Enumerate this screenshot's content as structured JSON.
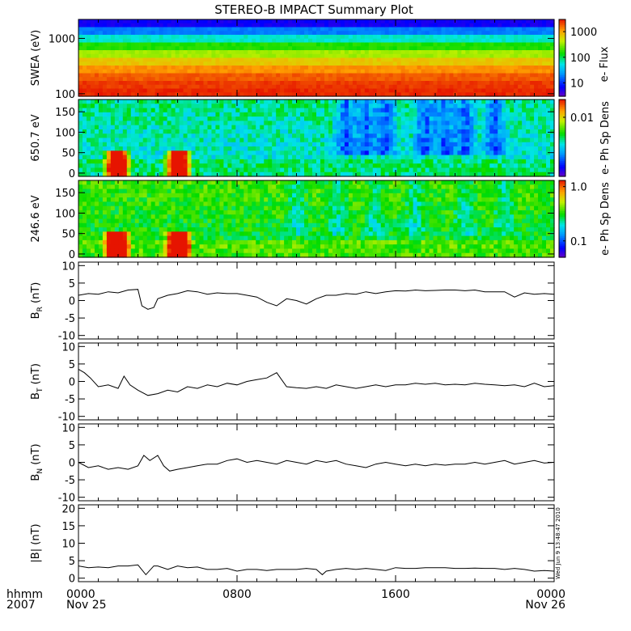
{
  "title": "STEREO-B IMPACT Summary Plot",
  "corner": {
    "row1": "hhmm",
    "row2": "2007"
  },
  "side_stamp": "Wed Jun  9 13:48:47 2010",
  "colors": {
    "line": "#000000",
    "axis": "#000000"
  },
  "chart_data": [
    {
      "id": "swea",
      "type": "heatmap",
      "ylabel": "SWEA (eV)",
      "colorbar_label": "e- Flux",
      "y_scale": "log",
      "ylim": [
        90,
        2200
      ],
      "yticks": [
        100,
        1000
      ],
      "ytick_labels": [
        "100",
        "1000"
      ],
      "colorbar_scale": "log",
      "colorbar_range": [
        3,
        3000
      ],
      "colorbar_ticks": [
        10,
        100,
        1000
      ],
      "colorbar_tick_labels": [
        "10",
        "100",
        "1000"
      ],
      "x_hours": [
        0,
        2,
        4,
        6,
        8,
        10,
        12,
        14,
        16,
        18,
        20,
        22,
        24
      ],
      "energy_levels_eV": [
        2000,
        1400,
        1000,
        700,
        500,
        350,
        250,
        180,
        130,
        100
      ],
      "flux_profile": [
        6,
        18,
        60,
        160,
        350,
        700,
        1200,
        1800,
        2300,
        2600
      ]
    },
    {
      "id": "pad650",
      "type": "heatmap",
      "ylabel": "650.7 eV",
      "colorbar_label": "e- Ph Sp Dens",
      "ylim": [
        -8,
        180
      ],
      "yticks": [
        0,
        50,
        100,
        150
      ],
      "ytick_labels": [
        "0",
        "50",
        "100",
        "150"
      ],
      "colorbar_scale": "log",
      "colorbar_range": [
        0.001,
        0.02
      ],
      "colorbar_ticks": [
        0.01
      ],
      "colorbar_tick_labels": [
        "0.01"
      ],
      "low_hours": [
        13.5,
        14.5,
        15.5,
        17.5,
        18.5,
        19.5,
        21.0
      ],
      "burst_hours": [
        1.7,
        2.2,
        4.8,
        5.3
      ]
    },
    {
      "id": "pad246",
      "type": "heatmap",
      "ylabel": "246.6 eV",
      "colorbar_label": "e- Ph Sp Dens",
      "ylim": [
        -8,
        180
      ],
      "yticks": [
        0,
        50,
        100,
        150
      ],
      "ytick_labels": [
        "0",
        "50",
        "100",
        "150"
      ],
      "colorbar_scale": "log",
      "colorbar_range": [
        0.05,
        1.3
      ],
      "colorbar_ticks": [
        0.1,
        1.0
      ],
      "colorbar_tick_labels": [
        "0.1",
        "1.0"
      ],
      "low_hours": [
        11.0,
        13.0,
        15.0,
        17.0,
        19.5,
        21.5
      ],
      "burst_hours": [
        1.7,
        2.2,
        4.8,
        5.3
      ]
    },
    {
      "id": "br",
      "type": "line",
      "ylabel": "BR (nT)",
      "ylabel_main": "B",
      "ylabel_sub": "R",
      "ylabel_unit": "(nT)",
      "ylim": [
        -11,
        11
      ],
      "yticks": [
        -10,
        -5,
        0,
        5,
        10
      ],
      "ytick_labels": [
        "-10",
        "-5",
        "0",
        "5",
        "10"
      ],
      "x_hours": [
        0,
        0.5,
        1,
        1.5,
        2,
        2.5,
        3,
        3.2,
        3.5,
        3.8,
        4,
        4.5,
        5,
        5.5,
        6,
        6.5,
        7,
        7.5,
        8,
        8.5,
        9,
        9.5,
        10,
        10.5,
        11,
        11.5,
        12,
        12.5,
        13,
        13.5,
        14,
        14.5,
        15,
        15.5,
        16,
        16.5,
        17,
        17.5,
        18,
        18.5,
        19,
        19.5,
        20,
        20.5,
        21,
        21.5,
        22,
        22.5,
        23,
        23.5,
        24
      ],
      "y_nT": [
        1.5,
        2.0,
        1.8,
        2.5,
        2.2,
        3.0,
        3.2,
        -1.5,
        -2.5,
        -2.0,
        0.5,
        1.5,
        2.0,
        2.8,
        2.5,
        1.8,
        2.2,
        2.0,
        2.0,
        1.5,
        1.0,
        -0.5,
        -1.5,
        0.5,
        0.0,
        -1.0,
        0.5,
        1.5,
        1.5,
        2.0,
        1.8,
        2.5,
        2.0,
        2.5,
        2.8,
        2.7,
        3.0,
        2.8,
        2.9,
        3.0,
        3.0,
        2.8,
        3.0,
        2.5,
        2.5,
        2.5,
        1.0,
        2.2,
        1.8,
        2.0,
        1.8
      ]
    },
    {
      "id": "bt",
      "type": "line",
      "ylabel": "BT (nT)",
      "ylabel_main": "B",
      "ylabel_sub": "T",
      "ylabel_unit": "(nT)",
      "ylim": [
        -11,
        11
      ],
      "yticks": [
        -10,
        -5,
        0,
        5,
        10
      ],
      "ytick_labels": [
        "-10",
        "-5",
        "0",
        "5",
        "10"
      ],
      "x_hours": [
        0,
        0.3,
        0.6,
        1,
        1.5,
        2,
        2.3,
        2.6,
        3,
        3.5,
        4,
        4.5,
        5,
        5.5,
        6,
        6.5,
        7,
        7.5,
        8,
        8.5,
        9,
        9.5,
        10,
        10.5,
        11,
        11.5,
        12,
        12.5,
        13,
        13.5,
        14,
        14.5,
        15,
        15.5,
        16,
        16.5,
        17,
        17.5,
        18,
        18.5,
        19,
        19.5,
        20,
        20.5,
        21,
        21.5,
        22,
        22.5,
        23,
        23.5,
        24
      ],
      "y_nT": [
        3.5,
        2.5,
        1.0,
        -1.5,
        -1.0,
        -2.0,
        1.5,
        -1.0,
        -2.5,
        -4.0,
        -3.5,
        -2.5,
        -3.0,
        -1.5,
        -2.0,
        -1.0,
        -1.5,
        -0.5,
        -1.0,
        0.0,
        0.5,
        1.0,
        2.5,
        -1.5,
        -1.8,
        -2.0,
        -1.5,
        -2.0,
        -1.0,
        -1.5,
        -2.0,
        -1.5,
        -1.0,
        -1.5,
        -1.0,
        -1.0,
        -0.5,
        -0.8,
        -0.5,
        -1.0,
        -0.8,
        -1.0,
        -0.5,
        -0.8,
        -1.0,
        -1.2,
        -1.0,
        -1.5,
        -0.5,
        -1.5,
        -1.2
      ]
    },
    {
      "id": "bn",
      "type": "line",
      "ylabel": "BN (nT)",
      "ylabel_main": "B",
      "ylabel_sub": "N",
      "ylabel_unit": "(nT)",
      "ylim": [
        -11,
        11
      ],
      "yticks": [
        -10,
        -5,
        0,
        5,
        10
      ],
      "ytick_labels": [
        "-10",
        "-5",
        "0",
        "5",
        "10"
      ],
      "x_hours": [
        0,
        0.5,
        1,
        1.5,
        2,
        2.5,
        3,
        3.3,
        3.6,
        4,
        4.3,
        4.6,
        5,
        5.5,
        6,
        6.5,
        7,
        7.5,
        8,
        8.5,
        9,
        9.5,
        10,
        10.5,
        11,
        11.5,
        12,
        12.5,
        13,
        13.5,
        14,
        14.5,
        15,
        15.5,
        16,
        16.5,
        17,
        17.5,
        18,
        18.5,
        19,
        19.5,
        20,
        20.5,
        21,
        21.5,
        22,
        22.5,
        23,
        23.5,
        24
      ],
      "y_nT": [
        0.0,
        -1.5,
        -1.0,
        -2.0,
        -1.5,
        -2.0,
        -1.0,
        2.0,
        0.5,
        2.0,
        -1.0,
        -2.5,
        -2.0,
        -1.5,
        -1.0,
        -0.5,
        -0.5,
        0.5,
        1.0,
        0.0,
        0.5,
        0.0,
        -0.5,
        0.5,
        0.0,
        -0.5,
        0.5,
        0.0,
        0.5,
        -0.5,
        -1.0,
        -1.5,
        -0.5,
        0.0,
        -0.5,
        -1.0,
        -0.5,
        -1.0,
        -0.5,
        -0.8,
        -0.5,
        -0.5,
        0.0,
        -0.5,
        0.0,
        0.5,
        -0.5,
        0.0,
        0.5,
        -0.2,
        0.0
      ]
    },
    {
      "id": "bmag",
      "type": "line",
      "ylabel": "|B| (nT)",
      "ylabel_main": "|B|",
      "ylabel_sub": "",
      "ylabel_unit": "(nT)",
      "ylim": [
        -1,
        21
      ],
      "yticks": [
        0,
        5,
        10,
        15,
        20
      ],
      "ytick_labels": [
        "0",
        "5",
        "10",
        "15",
        "20"
      ],
      "x_hours": [
        0,
        0.5,
        1,
        1.5,
        2,
        2.5,
        3,
        3.4,
        3.8,
        4,
        4.5,
        5,
        5.5,
        6,
        6.5,
        7,
        7.5,
        8,
        8.5,
        9,
        9.5,
        10,
        10.5,
        11,
        11.5,
        12,
        12.3,
        12.5,
        13,
        13.5,
        14,
        14.5,
        15,
        15.5,
        16,
        16.5,
        17,
        17.5,
        18,
        18.5,
        19,
        19.5,
        20,
        20.5,
        21,
        21.5,
        22,
        22.5,
        23,
        23.5,
        24
      ],
      "y_nT": [
        3.5,
        3.0,
        3.2,
        3.0,
        3.5,
        3.5,
        3.8,
        1.0,
        3.5,
        3.5,
        2.5,
        3.5,
        3.0,
        3.2,
        2.5,
        2.5,
        2.8,
        2.0,
        2.5,
        2.5,
        2.2,
        2.5,
        2.5,
        2.5,
        2.8,
        2.5,
        1.0,
        2.0,
        2.5,
        2.8,
        2.5,
        2.8,
        2.5,
        2.2,
        3.0,
        2.8,
        2.8,
        3.0,
        3.0,
        3.0,
        2.8,
        2.8,
        2.9,
        2.8,
        2.8,
        2.5,
        2.8,
        2.5,
        2.0,
        2.2,
        2.0
      ]
    }
  ],
  "x_axis": {
    "range_hours": [
      0,
      24
    ],
    "major_ticks_hours": [
      0,
      8,
      16,
      24
    ],
    "labels": [
      {
        "hour": 0,
        "time": "0000",
        "date": "Nov 25"
      },
      {
        "hour": 8,
        "time": "0800",
        "date": ""
      },
      {
        "hour": 16,
        "time": "1600",
        "date": ""
      },
      {
        "hour": 24,
        "time": "0000",
        "date": "Nov 26"
      }
    ],
    "minor_ticks_per_hour": 1
  }
}
